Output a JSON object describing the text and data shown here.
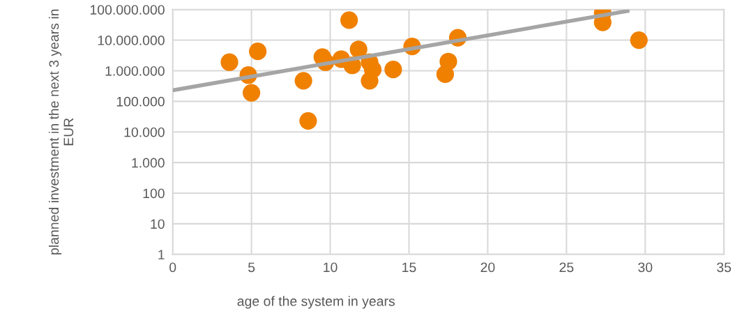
{
  "chart_data": {
    "type": "scatter",
    "xlabel": "age of the system in years",
    "ylabel": "planned investment in the next 3 years in EUR",
    "log": "y",
    "grid": true,
    "legend": false,
    "marker": "circle",
    "xlim": [
      0,
      35
    ],
    "xticks": [
      0,
      5,
      10,
      15,
      20,
      25,
      30,
      35
    ],
    "ylim": [
      1,
      100000000
    ],
    "yticks": [
      1,
      10,
      100,
      {
        "value": 1000,
        "label": "1.000"
      },
      {
        "value": 10000,
        "label": "10.000"
      },
      {
        "value": 100000,
        "label": "100.000"
      },
      {
        "value": 1000000,
        "label": "1.000.000"
      },
      {
        "value": 10000000,
        "label": "10.000.000"
      },
      {
        "value": 100000000,
        "label": "100.000.000"
      }
    ],
    "series": [
      {
        "color": "#f08000",
        "x": [
          3.6,
          4.8,
          5.0,
          5.4,
          8.3,
          8.6,
          9.5,
          9.7,
          10.7,
          11.2,
          11.4,
          11.8,
          12.5,
          12.7,
          12.5,
          14.0,
          15.2,
          17.5,
          17.3,
          18.1,
          27.3,
          27.3,
          29.6
        ],
        "values": [
          1900000,
          720000,
          190000,
          4300000,
          470000,
          23000,
          2800000,
          1900000,
          2400000,
          45000000,
          1500000,
          5000000,
          1900000,
          1100000,
          470000,
          1100000,
          6200000,
          2000000,
          770000,
          12000000,
          76000000,
          38000000,
          10000000
        ]
      },
      {
        "type": "line",
        "color": "#a5a5a5",
        "marker": "none",
        "x": [
          0,
          29
        ],
        "values": [
          230000,
          92000000
        ]
      }
    ]
  }
}
